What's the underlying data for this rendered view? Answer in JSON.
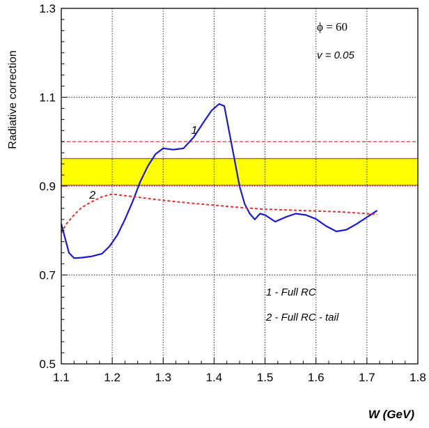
{
  "chart_data": {
    "type": "line",
    "xlabel": "W (GeV)",
    "ylabel": "Radiative correction",
    "xlim": [
      1.1,
      1.8
    ],
    "ylim": [
      0.5,
      1.3
    ],
    "x_ticks": [
      "1.1",
      "1.2",
      "1.3",
      "1.4",
      "1.5",
      "1.6",
      "1.7",
      "1.8"
    ],
    "x_tick_values": [
      1.1,
      1.2,
      1.3,
      1.4,
      1.5,
      1.6,
      1.7,
      1.8
    ],
    "y_ticks": [
      "0.5",
      "0.7",
      "0.9",
      "1.1",
      "1.3"
    ],
    "y_tick_values": [
      0.5,
      0.7,
      0.9,
      1.1,
      1.3
    ],
    "grid": true,
    "annotations": {
      "phi": "ϕ = 60",
      "v": "v = 0.05",
      "legend_1": "1 - Full RC",
      "legend_2": "2 - Full RC - tail"
    },
    "band": {
      "y_low": 0.902,
      "y_high": 0.962,
      "fill": "#ffff00",
      "edge": "#e03030"
    },
    "reference_line": {
      "y": 1.0,
      "color": "#e03030",
      "style": "dashed"
    },
    "series": [
      {
        "label": "1",
        "color": "#1a1acc",
        "style": "solid",
        "label_at": [
          1.355,
          1.018
        ],
        "x": [
          1.1,
          1.115,
          1.125,
          1.14,
          1.16,
          1.18,
          1.195,
          1.21,
          1.225,
          1.24,
          1.255,
          1.27,
          1.285,
          1.3,
          1.32,
          1.34,
          1.36,
          1.38,
          1.395,
          1.41,
          1.42,
          1.43,
          1.44,
          1.45,
          1.46,
          1.47,
          1.48,
          1.49,
          1.5,
          1.52,
          1.54,
          1.56,
          1.58,
          1.6,
          1.62,
          1.64,
          1.66,
          1.68,
          1.7,
          1.72
        ],
        "y": [
          0.815,
          0.75,
          0.738,
          0.739,
          0.742,
          0.748,
          0.765,
          0.79,
          0.825,
          0.865,
          0.91,
          0.945,
          0.972,
          0.985,
          0.982,
          0.985,
          1.01,
          1.045,
          1.07,
          1.085,
          1.08,
          1.02,
          0.96,
          0.9,
          0.86,
          0.838,
          0.825,
          0.838,
          0.835,
          0.82,
          0.83,
          0.838,
          0.835,
          0.826,
          0.81,
          0.798,
          0.802,
          0.815,
          0.83,
          0.845
        ]
      },
      {
        "label": "2",
        "color": "#e03030",
        "style": "dashed",
        "label_at": [
          1.155,
          0.872
        ],
        "x": [
          1.1,
          1.11,
          1.125,
          1.14,
          1.16,
          1.18,
          1.2,
          1.25,
          1.3,
          1.35,
          1.4,
          1.45,
          1.5,
          1.55,
          1.6,
          1.65,
          1.7,
          1.72
        ],
        "y": [
          0.795,
          0.815,
          0.835,
          0.852,
          0.865,
          0.876,
          0.882,
          0.875,
          0.868,
          0.862,
          0.857,
          0.852,
          0.848,
          0.846,
          0.844,
          0.842,
          0.838,
          0.836
        ]
      }
    ]
  }
}
